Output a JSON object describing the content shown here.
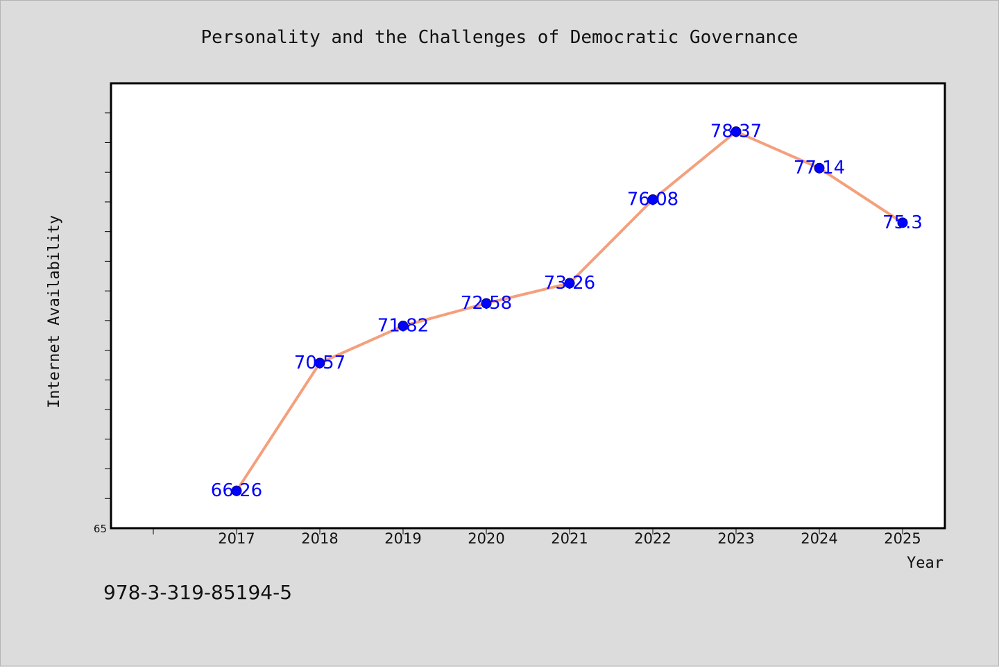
{
  "chart_data": {
    "type": "line",
    "title": "Personality and the Challenges of Democratic Governance",
    "xlabel": "Year",
    "ylabel": "Internet Availability",
    "x": [
      "2017",
      "2018",
      "2019",
      "2020",
      "2021",
      "2022",
      "2023",
      "2024",
      "2025"
    ],
    "series": [
      {
        "values": [
          66.26,
          70.57,
          71.82,
          72.58,
          73.26,
          76.08,
          78.37,
          77.14,
          75.3
        ],
        "labels": [
          "66.26",
          "70.57",
          "71.82",
          "72.58",
          "73.26",
          "76.08",
          "78.37",
          "77.14",
          "75.3"
        ],
        "line_color": "#f4a07c",
        "marker_color": "#0000ff"
      }
    ],
    "ylim": [
      65,
      80
    ],
    "y_tick_labels": [
      "65"
    ],
    "y_minor_ticks": [
      66,
      67,
      68,
      69,
      70,
      71,
      72,
      73,
      74,
      75,
      76,
      77,
      78,
      79
    ],
    "x_extra_left_tick": true,
    "grid": false,
    "legend": "none"
  },
  "footer": {
    "isbn": "978-3-319-85194-5"
  },
  "colors": {
    "background": "#dcdcdc",
    "plot_background": "#ffffff",
    "label_color": "#0000ff"
  }
}
